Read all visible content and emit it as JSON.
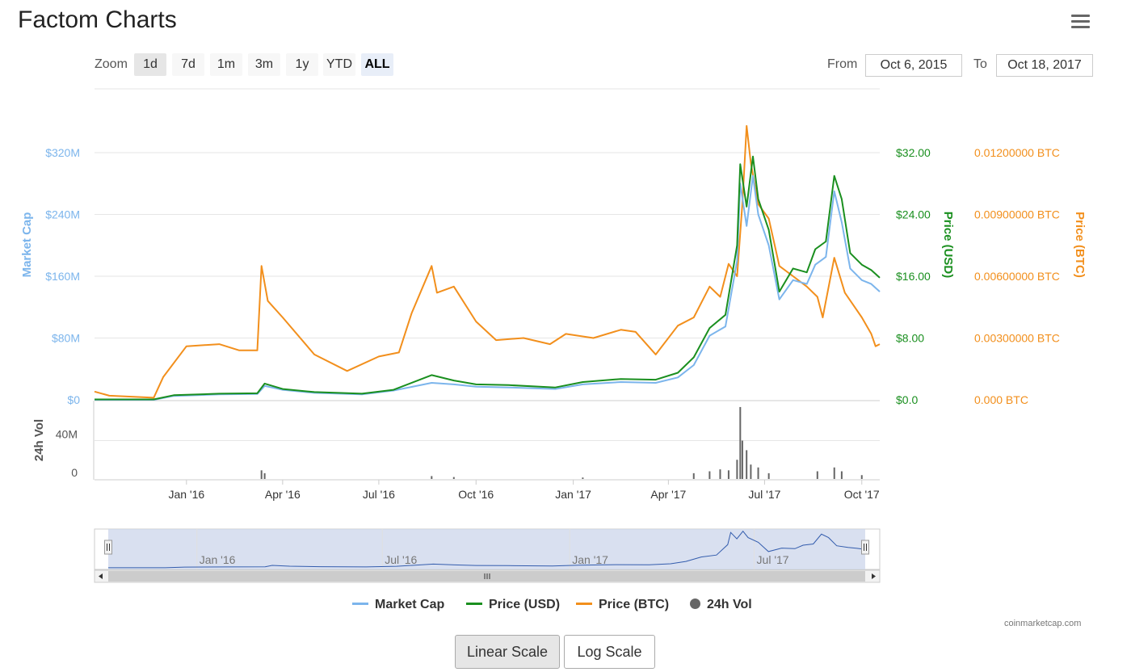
{
  "header": {
    "title": "Factom Charts"
  },
  "zoom": {
    "label": "Zoom",
    "buttons": [
      "1d",
      "7d",
      "1m",
      "3m",
      "1y",
      "YTD",
      "ALL"
    ],
    "selected": "1d"
  },
  "range": {
    "from_label": "From",
    "from_value": "Oct 6, 2015",
    "to_label": "To",
    "to_value": "Oct 18, 2017"
  },
  "colors": {
    "market_cap": "#7cb5ec",
    "price_usd": "#1a8f1f",
    "price_btc": "#f28f1c",
    "volume": "#666666"
  },
  "chart_data": {
    "type": "line",
    "title": "Factom Charts",
    "x_tick_labels": [
      "Jan '16",
      "Apr '16",
      "Jul '16",
      "Oct '16",
      "Jan '17",
      "Apr '17",
      "Jul '17",
      "Oct '17"
    ],
    "x_range": [
      "2015-10-06",
      "2017-10-18"
    ],
    "axes": {
      "market_cap": {
        "label": "Market Cap",
        "ticks": [
          "$0",
          "$80M",
          "$160M",
          "$240M",
          "$320M"
        ],
        "range": [
          0,
          320000000
        ]
      },
      "price_usd": {
        "label": "Price (USD)",
        "ticks": [
          "$0.0",
          "$8.00",
          "$16.00",
          "$24.00",
          "$32.00"
        ],
        "range": [
          0,
          32
        ]
      },
      "price_btc": {
        "label": "Price (BTC)",
        "ticks": [
          "0.000 BTC",
          "0.00300000 BTC",
          "0.00600000 BTC",
          "0.00900000 BTC",
          "0.01200000 BTC"
        ],
        "range": [
          0,
          0.012
        ]
      },
      "volume": {
        "label": "24h Vol",
        "ticks": [
          "0",
          "40M"
        ],
        "range": [
          0,
          80000000
        ]
      }
    },
    "series": [
      {
        "name": "Market Cap",
        "axis": "market_cap",
        "points": [
          [
            "2015-10-06",
            0
          ],
          [
            "2015-12-01",
            0
          ],
          [
            "2015-12-20",
            5000000
          ],
          [
            "2016-02-01",
            7000000
          ],
          [
            "2016-03-08",
            7500000
          ],
          [
            "2016-03-15",
            18000000
          ],
          [
            "2016-04-01",
            13000000
          ],
          [
            "2016-05-01",
            9000000
          ],
          [
            "2016-06-15",
            7000000
          ],
          [
            "2016-07-15",
            12000000
          ],
          [
            "2016-08-20",
            22000000
          ],
          [
            "2016-09-10",
            20000000
          ],
          [
            "2016-10-01",
            17000000
          ],
          [
            "2016-11-01",
            16000000
          ],
          [
            "2016-12-15",
            14000000
          ],
          [
            "2017-01-10",
            20000000
          ],
          [
            "2017-02-15",
            23000000
          ],
          [
            "2017-03-20",
            22000000
          ],
          [
            "2017-04-10",
            29000000
          ],
          [
            "2017-04-25",
            45000000
          ],
          [
            "2017-05-10",
            83000000
          ],
          [
            "2017-05-25",
            95000000
          ],
          [
            "2017-06-05",
            180000000
          ],
          [
            "2017-06-08",
            280000000
          ],
          [
            "2017-06-14",
            225000000
          ],
          [
            "2017-06-20",
            290000000
          ],
          [
            "2017-06-25",
            240000000
          ],
          [
            "2017-07-05",
            200000000
          ],
          [
            "2017-07-15",
            130000000
          ],
          [
            "2017-07-28",
            155000000
          ],
          [
            "2017-08-10",
            150000000
          ],
          [
            "2017-08-18",
            175000000
          ],
          [
            "2017-08-28",
            185000000
          ],
          [
            "2017-09-05",
            270000000
          ],
          [
            "2017-09-12",
            230000000
          ],
          [
            "2017-09-20",
            170000000
          ],
          [
            "2017-10-01",
            155000000
          ],
          [
            "2017-10-10",
            150000000
          ],
          [
            "2017-10-18",
            140000000
          ]
        ]
      },
      {
        "name": "Price (USD)",
        "axis": "price_usd",
        "points": [
          [
            "2015-10-06",
            0.05
          ],
          [
            "2015-12-01",
            0.05
          ],
          [
            "2015-12-20",
            0.6
          ],
          [
            "2016-02-01",
            0.8
          ],
          [
            "2016-03-08",
            0.85
          ],
          [
            "2016-03-15",
            2.1
          ],
          [
            "2016-04-01",
            1.4
          ],
          [
            "2016-05-01",
            1.0
          ],
          [
            "2016-06-15",
            0.8
          ],
          [
            "2016-07-15",
            1.3
          ],
          [
            "2016-08-20",
            3.2
          ],
          [
            "2016-09-10",
            2.5
          ],
          [
            "2016-10-01",
            2.0
          ],
          [
            "2016-11-01",
            1.9
          ],
          [
            "2016-12-15",
            1.6
          ],
          [
            "2017-01-10",
            2.3
          ],
          [
            "2017-02-15",
            2.7
          ],
          [
            "2017-03-20",
            2.6
          ],
          [
            "2017-04-10",
            3.5
          ],
          [
            "2017-04-25",
            5.5
          ],
          [
            "2017-05-10",
            9.3
          ],
          [
            "2017-05-25",
            11.0
          ],
          [
            "2017-06-05",
            20.0
          ],
          [
            "2017-06-08",
            30.5
          ],
          [
            "2017-06-14",
            25.0
          ],
          [
            "2017-06-20",
            31.5
          ],
          [
            "2017-06-25",
            26.0
          ],
          [
            "2017-07-05",
            22.0
          ],
          [
            "2017-07-15",
            14.0
          ],
          [
            "2017-07-28",
            17.0
          ],
          [
            "2017-08-10",
            16.5
          ],
          [
            "2017-08-18",
            19.5
          ],
          [
            "2017-08-28",
            20.5
          ],
          [
            "2017-09-05",
            29.0
          ],
          [
            "2017-09-12",
            26.0
          ],
          [
            "2017-09-20",
            19.0
          ],
          [
            "2017-10-01",
            17.5
          ],
          [
            "2017-10-10",
            16.8
          ],
          [
            "2017-10-18",
            15.8
          ]
        ]
      },
      {
        "name": "Price (BTC)",
        "axis": "price_btc",
        "points": [
          [
            "2015-10-06",
            0.0004
          ],
          [
            "2015-10-20",
            0.0002
          ],
          [
            "2015-12-01",
            0.0001
          ],
          [
            "2015-12-10",
            0.0011
          ],
          [
            "2016-01-01",
            0.0026
          ],
          [
            "2016-02-01",
            0.0027
          ],
          [
            "2016-02-20",
            0.0024
          ],
          [
            "2016-03-08",
            0.0024
          ],
          [
            "2016-03-12",
            0.0065
          ],
          [
            "2016-03-18",
            0.0048
          ],
          [
            "2016-04-01",
            0.004
          ],
          [
            "2016-05-01",
            0.0022
          ],
          [
            "2016-06-01",
            0.0014
          ],
          [
            "2016-07-01",
            0.0021
          ],
          [
            "2016-07-20",
            0.0023
          ],
          [
            "2016-08-01",
            0.0042
          ],
          [
            "2016-08-20",
            0.0065
          ],
          [
            "2016-08-25",
            0.0052
          ],
          [
            "2016-09-10",
            0.0055
          ],
          [
            "2016-10-01",
            0.0038
          ],
          [
            "2016-10-20",
            0.0029
          ],
          [
            "2016-11-15",
            0.003
          ],
          [
            "2016-12-10",
            0.0027
          ],
          [
            "2016-12-25",
            0.0032
          ],
          [
            "2017-01-20",
            0.003
          ],
          [
            "2017-02-15",
            0.0034
          ],
          [
            "2017-03-01",
            0.0033
          ],
          [
            "2017-03-20",
            0.0022
          ],
          [
            "2017-04-10",
            0.0036
          ],
          [
            "2017-04-25",
            0.004
          ],
          [
            "2017-05-10",
            0.0055
          ],
          [
            "2017-05-20",
            0.005
          ],
          [
            "2017-05-28",
            0.0066
          ],
          [
            "2017-06-05",
            0.006
          ],
          [
            "2017-06-10",
            0.0095
          ],
          [
            "2017-06-14",
            0.0133
          ],
          [
            "2017-06-18",
            0.0115
          ],
          [
            "2017-06-25",
            0.0095
          ],
          [
            "2017-07-05",
            0.0088
          ],
          [
            "2017-07-15",
            0.0065
          ],
          [
            "2017-07-28",
            0.006
          ],
          [
            "2017-08-10",
            0.0055
          ],
          [
            "2017-08-20",
            0.005
          ],
          [
            "2017-08-25",
            0.004
          ],
          [
            "2017-09-05",
            0.0069
          ],
          [
            "2017-09-15",
            0.0052
          ],
          [
            "2017-10-01",
            0.004
          ],
          [
            "2017-10-10",
            0.0032
          ],
          [
            "2017-10-14",
            0.0026
          ],
          [
            "2017-10-18",
            0.0027
          ]
        ]
      }
    ],
    "volume": {
      "name": "24h Vol",
      "points": [
        [
          "2016-03-12",
          9000000
        ],
        [
          "2016-03-15",
          6000000
        ],
        [
          "2016-08-20",
          3000000
        ],
        [
          "2016-09-10",
          2000000
        ],
        [
          "2017-01-10",
          1500000
        ],
        [
          "2017-04-25",
          6000000
        ],
        [
          "2017-05-10",
          8000000
        ],
        [
          "2017-05-20",
          10000000
        ],
        [
          "2017-05-28",
          9000000
        ],
        [
          "2017-06-05",
          20000000
        ],
        [
          "2017-06-08",
          75000000
        ],
        [
          "2017-06-10",
          40000000
        ],
        [
          "2017-06-14",
          30000000
        ],
        [
          "2017-06-18",
          15000000
        ],
        [
          "2017-06-25",
          12000000
        ],
        [
          "2017-07-05",
          6000000
        ],
        [
          "2017-08-20",
          8000000
        ],
        [
          "2017-09-05",
          12000000
        ],
        [
          "2017-09-12",
          8000000
        ],
        [
          "2017-10-01",
          4000000
        ]
      ]
    }
  },
  "navigator": {
    "labels": [
      "Jan '16",
      "Jul '16",
      "Jan '17",
      "Jul '17"
    ]
  },
  "legend": {
    "items": [
      "Market Cap",
      "Price (USD)",
      "Price (BTC)",
      "24h Vol"
    ]
  },
  "credit": "coinmarketcap.com",
  "scale": {
    "buttons": [
      "Linear Scale",
      "Log Scale"
    ],
    "active": "Linear Scale"
  }
}
